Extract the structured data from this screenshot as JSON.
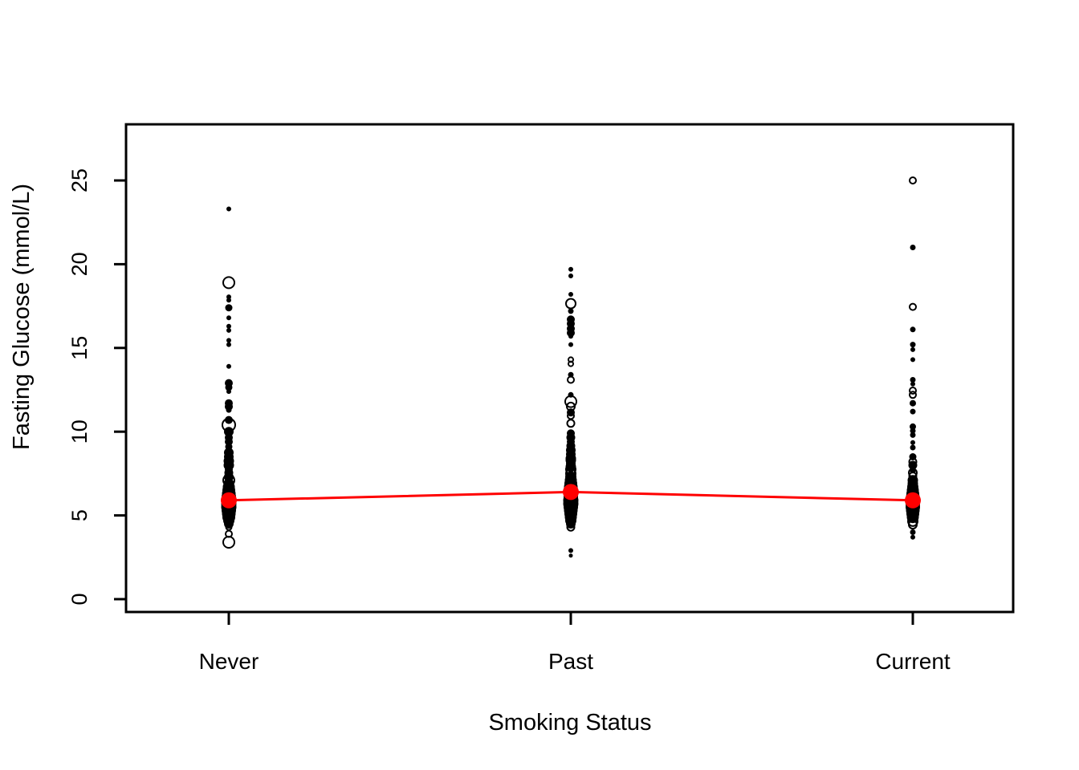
{
  "chart_data": {
    "type": "scatter",
    "title": "",
    "xlabel": "Smoking Status",
    "ylabel": "Fasting Glucose (mmol/L)",
    "categories": [
      "Never",
      "Past",
      "Current"
    ],
    "y_ticks": [
      0,
      5,
      10,
      15,
      20,
      25
    ],
    "ylim": [
      -0.8,
      28.4
    ],
    "grid": false,
    "legend": "none",
    "background_color": "#FFFFFF",
    "marker_color": "#000000",
    "mean_color": "#FF0000",
    "mean_series_name": "category means (red)",
    "means": [
      5.9,
      6.4,
      5.9
    ],
    "point_format": "[glucose_value_mmol_per_L, marker_size_px, filled_flag]",
    "series": [
      {
        "name": "Never",
        "points": [
          [
            23.3,
            2,
            1
          ],
          [
            18.9,
            7,
            0
          ],
          [
            18.05,
            2,
            1
          ],
          [
            17.85,
            2,
            1
          ],
          [
            17.4,
            3.5,
            1
          ],
          [
            16.8,
            2,
            1
          ],
          [
            16.3,
            2,
            1
          ],
          [
            16.05,
            2,
            1
          ],
          [
            15.45,
            2,
            1
          ],
          [
            15.2,
            2,
            1
          ],
          [
            13.9,
            2,
            1
          ],
          [
            12.9,
            4,
            1
          ],
          [
            12.65,
            3.5,
            1
          ],
          [
            12.4,
            2,
            1
          ],
          [
            11.7,
            4,
            1
          ],
          [
            11.5,
            4,
            1
          ],
          [
            11.3,
            2.5,
            1
          ],
          [
            10.7,
            4,
            1
          ],
          [
            10.4,
            8,
            0
          ],
          [
            10.0,
            5,
            1
          ],
          [
            9.65,
            4,
            1
          ],
          [
            9.4,
            4,
            1
          ],
          [
            9.1,
            3.5,
            1
          ],
          [
            8.75,
            5,
            1
          ],
          [
            8.5,
            5,
            1
          ],
          [
            8.25,
            5.5,
            1
          ],
          [
            8.0,
            5.5,
            1
          ],
          [
            7.75,
            4,
            1
          ],
          [
            7.55,
            4.5,
            1
          ],
          [
            7.3,
            5,
            1
          ],
          [
            7.1,
            7,
            0
          ],
          [
            6.9,
            5.5,
            1
          ],
          [
            6.7,
            6.5,
            1
          ],
          [
            6.5,
            7,
            1
          ],
          [
            6.3,
            7.5,
            1
          ],
          [
            6.1,
            8,
            1
          ],
          [
            5.9,
            8.5,
            1
          ],
          [
            5.7,
            8.5,
            1
          ],
          [
            5.5,
            8.5,
            1
          ],
          [
            5.3,
            8,
            1
          ],
          [
            5.1,
            7.5,
            1
          ],
          [
            4.9,
            7,
            1
          ],
          [
            4.7,
            6,
            1
          ],
          [
            4.5,
            5,
            1
          ],
          [
            4.3,
            3.5,
            0
          ],
          [
            3.9,
            4,
            0
          ],
          [
            3.4,
            7,
            0
          ]
        ]
      },
      {
        "name": "Past",
        "points": [
          [
            19.7,
            2,
            1
          ],
          [
            19.3,
            2,
            1
          ],
          [
            18.2,
            2,
            1
          ],
          [
            17.65,
            6,
            0
          ],
          [
            17.2,
            2.5,
            1
          ],
          [
            16.7,
            4,
            1
          ],
          [
            16.45,
            4,
            1
          ],
          [
            16.15,
            4,
            1
          ],
          [
            15.9,
            4,
            1
          ],
          [
            15.7,
            2,
            1
          ],
          [
            15.2,
            2,
            1
          ],
          [
            14.3,
            3,
            0
          ],
          [
            14.05,
            3,
            0
          ],
          [
            13.4,
            2.5,
            1
          ],
          [
            13.1,
            4,
            0
          ],
          [
            12.2,
            2.5,
            1
          ],
          [
            11.8,
            7,
            0
          ],
          [
            11.5,
            5,
            0
          ],
          [
            11.15,
            4,
            1
          ],
          [
            10.95,
            4,
            0
          ],
          [
            10.5,
            4.5,
            0
          ],
          [
            9.9,
            4,
            1
          ],
          [
            9.65,
            4.5,
            1
          ],
          [
            9.4,
            4,
            1
          ],
          [
            9.15,
            4.5,
            1
          ],
          [
            8.9,
            5,
            1
          ],
          [
            8.65,
            5,
            1
          ],
          [
            8.4,
            5.5,
            1
          ],
          [
            8.3,
            5.5,
            0
          ],
          [
            8.1,
            5,
            1
          ],
          [
            7.9,
            5.5,
            1
          ],
          [
            7.75,
            6,
            0
          ],
          [
            7.5,
            6,
            0
          ],
          [
            7.3,
            6,
            1
          ],
          [
            7.1,
            6.5,
            1
          ],
          [
            6.9,
            7,
            1
          ],
          [
            6.7,
            7.5,
            1
          ],
          [
            6.5,
            8,
            1
          ],
          [
            6.3,
            8,
            1
          ],
          [
            6.1,
            8,
            1
          ],
          [
            5.9,
            8.5,
            1
          ],
          [
            5.7,
            8.5,
            1
          ],
          [
            5.5,
            8,
            1
          ],
          [
            5.3,
            7.5,
            1
          ],
          [
            5.1,
            7,
            1
          ],
          [
            4.9,
            6.5,
            1
          ],
          [
            4.7,
            6,
            1
          ],
          [
            4.5,
            5,
            1
          ],
          [
            4.3,
            4.5,
            0
          ],
          [
            2.9,
            2,
            1
          ],
          [
            2.6,
            1.5,
            1
          ]
        ]
      },
      {
        "name": "Current",
        "points": [
          [
            25.0,
            4,
            0
          ],
          [
            21.0,
            2.5,
            1
          ],
          [
            17.45,
            4,
            0
          ],
          [
            16.1,
            2.5,
            1
          ],
          [
            15.2,
            2.5,
            1
          ],
          [
            14.9,
            2,
            1
          ],
          [
            14.3,
            2,
            1
          ],
          [
            13.1,
            2.5,
            1
          ],
          [
            12.85,
            2,
            1
          ],
          [
            12.45,
            4,
            0
          ],
          [
            12.2,
            4,
            0
          ],
          [
            11.7,
            3,
            1
          ],
          [
            11.2,
            2.5,
            1
          ],
          [
            10.3,
            3,
            1
          ],
          [
            10.05,
            2.5,
            1
          ],
          [
            9.8,
            2.5,
            1
          ],
          [
            9.35,
            2,
            1
          ],
          [
            9.05,
            2.5,
            1
          ],
          [
            8.5,
            3.5,
            1
          ],
          [
            8.2,
            4.5,
            0
          ],
          [
            8.0,
            4.5,
            1
          ],
          [
            7.7,
            3,
            1
          ],
          [
            7.55,
            5,
            0
          ],
          [
            7.35,
            4.5,
            0
          ],
          [
            7.1,
            5.5,
            1
          ],
          [
            6.9,
            5.5,
            1
          ],
          [
            6.7,
            6,
            1
          ],
          [
            6.5,
            6.5,
            1
          ],
          [
            6.3,
            7,
            1
          ],
          [
            6.1,
            7.5,
            1
          ],
          [
            5.9,
            8,
            1
          ],
          [
            5.7,
            8,
            1
          ],
          [
            5.5,
            8,
            1
          ],
          [
            5.3,
            7.5,
            1
          ],
          [
            5.1,
            7,
            1
          ],
          [
            4.9,
            6.5,
            1
          ],
          [
            4.65,
            6,
            0
          ],
          [
            4.45,
            5,
            0
          ],
          [
            4.0,
            2.5,
            1
          ],
          [
            3.7,
            2,
            1
          ]
        ]
      }
    ]
  }
}
